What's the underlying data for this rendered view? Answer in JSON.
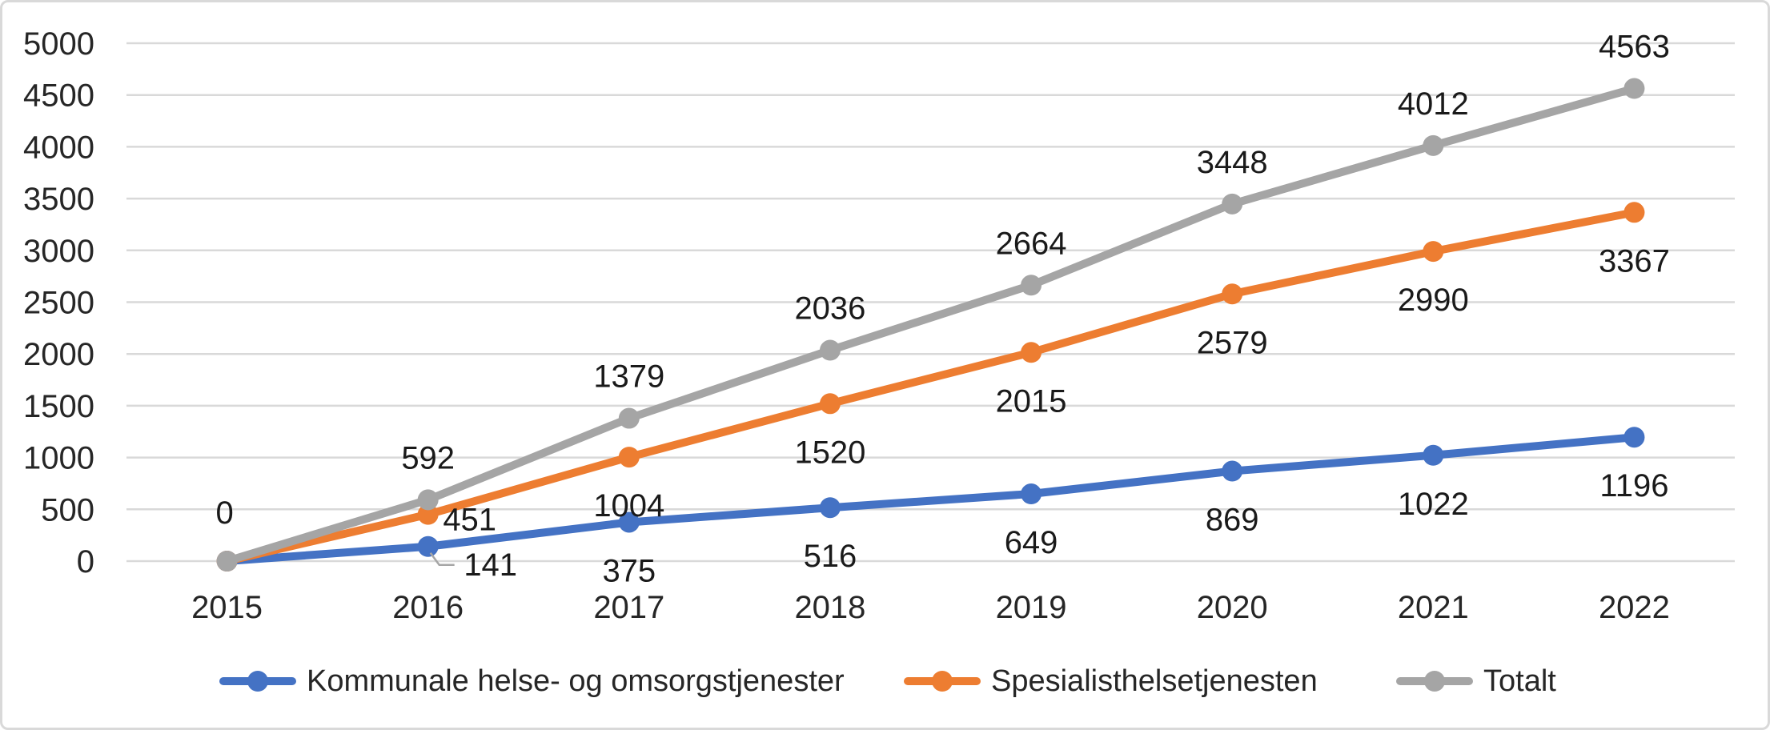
{
  "chart_data": {
    "type": "line",
    "title": "",
    "xlabel": "",
    "ylabel": "",
    "categories": [
      "2015",
      "2016",
      "2017",
      "2018",
      "2019",
      "2020",
      "2021",
      "2022"
    ],
    "series": [
      {
        "name": "Kommunale helse- og omsorgstjenester",
        "color": "#4472C4",
        "values": [
          0,
          141,
          375,
          516,
          649,
          869,
          1022,
          1196
        ],
        "label_position": "below",
        "skip_label_indices": [
          0
        ],
        "label_overrides": {
          "1": {
            "dx": 78,
            "dy": -38,
            "leader": true
          }
        }
      },
      {
        "name": "Spesialisthelsetjenesten",
        "color": "#ED7D31",
        "values": [
          0,
          451,
          1004,
          1520,
          2015,
          2579,
          2990,
          3367
        ],
        "label_position": "below",
        "skip_label_indices": [
          0
        ],
        "label_overrides": {
          "1": {
            "dx": 52,
            "dy": -54
          }
        }
      },
      {
        "name": "Totalt",
        "color": "#A5A5A5",
        "values": [
          0,
          592,
          1379,
          2036,
          2664,
          3448,
          4012,
          4563
        ],
        "label_position": "above",
        "label_overrides": {
          "0": {
            "dx": -3,
            "dy": -8
          }
        }
      }
    ],
    "ylim": [
      0,
      5000
    ],
    "ytick_step": 500,
    "yticks": [
      "0",
      "500",
      "1000",
      "1500",
      "2000",
      "2500",
      "3000",
      "3500",
      "4000",
      "4500",
      "5000"
    ],
    "grid": true,
    "legend_position": "bottom",
    "colors": {
      "gridline": "#D9D9D9",
      "axis_text": "#262626",
      "data_label_text": "#1A1A1A",
      "leader_line": "#A6A6A6",
      "chart_border": "#D9D9D9",
      "background": "#FFFFFF"
    }
  },
  "legend": {
    "items": [
      {
        "label": "Kommunale helse- og omsorgstjenester",
        "color": "#4472C4"
      },
      {
        "label": "Spesialisthelsetjenesten",
        "color": "#ED7D31"
      },
      {
        "label": "Totalt",
        "color": "#A5A5A5"
      }
    ]
  }
}
